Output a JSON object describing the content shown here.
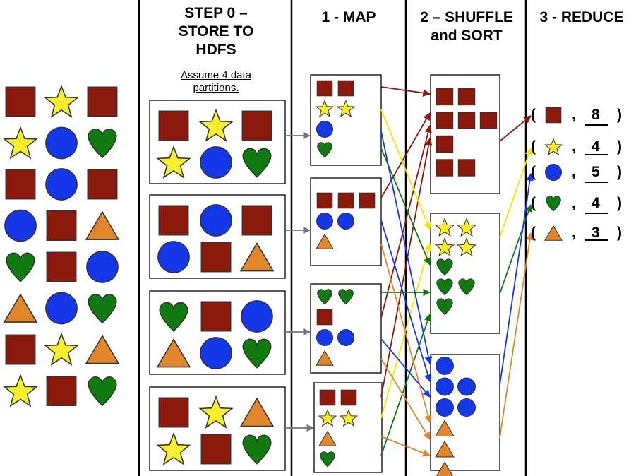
{
  "colors": {
    "square": "#8b1a0c",
    "star": "#f7ee2c",
    "circle": "#1438e8",
    "heart": "#0f7a10",
    "triangle": "#e2862c",
    "outline": "#333333"
  },
  "input": {
    "grid": [
      [
        "square",
        "star",
        "square"
      ],
      [
        "star",
        "circle",
        "heart"
      ],
      [
        "square",
        "circle",
        "square"
      ],
      [
        "circle",
        "square",
        "triangle"
      ],
      [
        "heart",
        "square",
        "circle"
      ],
      [
        "triangle",
        "circle",
        "heart"
      ],
      [
        "square",
        "star",
        "triangle"
      ],
      [
        "star",
        "square",
        "heart"
      ]
    ]
  },
  "step0": {
    "title_line1": "STEP 0 –",
    "title_line2": "STORE TO",
    "title_line3": "HDFS",
    "note_line1": "Assume 4 data",
    "note_line2": "partitions.",
    "partitions": [
      [
        "square",
        "star",
        "square",
        "star",
        "circle",
        "heart"
      ],
      [
        "square",
        "circle",
        "square",
        "circle",
        "square",
        "triangle"
      ],
      [
        "heart",
        "square",
        "circle",
        "triangle",
        "circle",
        "heart"
      ],
      [
        "square",
        "star",
        "triangle",
        "star",
        "square",
        "heart"
      ]
    ]
  },
  "map": {
    "title": "1 - MAP",
    "boxes": [
      [
        [
          "square",
          "square"
        ],
        [
          "star",
          "star"
        ],
        [
          "circle"
        ],
        [
          "heart"
        ]
      ],
      [
        [
          "square",
          "square",
          "square"
        ],
        [
          "circle",
          "circle"
        ],
        [
          "triangle"
        ]
      ],
      [
        [
          "heart",
          "heart"
        ],
        [
          "square"
        ],
        [
          "circle",
          "circle"
        ],
        [
          "triangle"
        ]
      ],
      [
        [
          "square",
          "square"
        ],
        [
          "star",
          "star"
        ],
        [
          "triangle"
        ],
        [
          "heart"
        ]
      ]
    ]
  },
  "shuffle": {
    "title_line1": "2 – SHUFFLE",
    "title_line2": "and SORT",
    "groups": [
      [
        [
          "square",
          "square"
        ],
        [
          "square",
          "square",
          "square"
        ],
        [
          "square"
        ],
        [
          "square",
          "square"
        ]
      ],
      [
        [
          "star",
          "star"
        ],
        [
          "star",
          "star"
        ],
        [
          "heart"
        ],
        [
          "heart",
          "heart"
        ],
        [
          "heart"
        ]
      ],
      [
        [
          "circle"
        ],
        [
          "circle",
          "circle"
        ],
        [
          "circle",
          "circle"
        ],
        [
          "triangle"
        ],
        [
          "triangle"
        ],
        [
          "triangle"
        ]
      ]
    ]
  },
  "reduce": {
    "title": "3 - REDUCE",
    "results": [
      {
        "shape": "square",
        "count": "8"
      },
      {
        "shape": "star",
        "count": "4"
      },
      {
        "shape": "circle",
        "count": "5"
      },
      {
        "shape": "heart",
        "count": "4"
      },
      {
        "shape": "triangle",
        "count": "3"
      }
    ],
    "open_paren": "(",
    "comma": ",",
    "close_paren": ")"
  }
}
